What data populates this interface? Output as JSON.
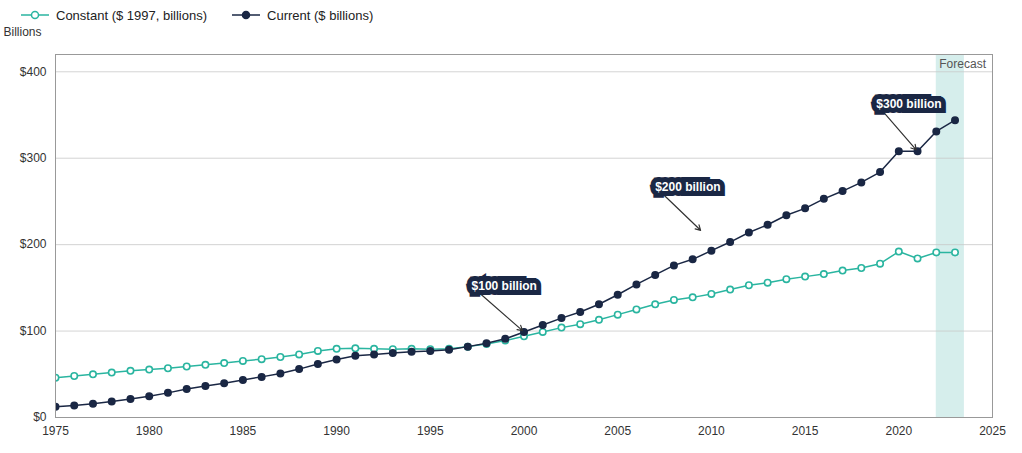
{
  "chart_data": {
    "type": "line",
    "x": [
      1975,
      1976,
      1977,
      1978,
      1979,
      1980,
      1981,
      1982,
      1983,
      1984,
      1985,
      1986,
      1987,
      1988,
      1989,
      1990,
      1991,
      1992,
      1993,
      1994,
      1995,
      1996,
      1997,
      1998,
      1999,
      2000,
      2001,
      2002,
      2003,
      2004,
      2005,
      2006,
      2007,
      2008,
      2009,
      2010,
      2011,
      2012,
      2013,
      2014,
      2015,
      2016,
      2017,
      2018,
      2019,
      2020,
      2021,
      2022,
      2023
    ],
    "series": [
      {
        "name": "Constant ($ 1997, billions)",
        "color": "#2ab5a0",
        "marker": "circle_open",
        "values": [
          46.0,
          48.0,
          50.0,
          52.0,
          54.0,
          55.5,
          57.0,
          59.0,
          61.0,
          63.0,
          65.5,
          67.5,
          70.0,
          73.0,
          77.0,
          79.5,
          80.0,
          79.5,
          79.0,
          79.5,
          79.0,
          79.5,
          82.0,
          85.0,
          89.0,
          94.0,
          99.0,
          104.0,
          108.0,
          113.0,
          119.0,
          125.0,
          131.0,
          136.0,
          139.0,
          143.0,
          148.0,
          153.0,
          156.0,
          160.0,
          163.0,
          166.0,
          170.0,
          173.0,
          178.0,
          192.0,
          184.0,
          191.0,
          191.0
        ]
      },
      {
        "name": "Current ($ billions)",
        "color": "#1a2744",
        "marker": "circle",
        "values": [
          12.5,
          14.0,
          16.0,
          18.5,
          21.5,
          24.5,
          28.5,
          33.0,
          36.5,
          39.5,
          43.5,
          47.0,
          51.0,
          56.0,
          62.0,
          67.0,
          71.5,
          73.0,
          74.5,
          76.0,
          77.0,
          78.5,
          82.0,
          86.0,
          91.0,
          99.0,
          107.0,
          115.0,
          122.0,
          131.0,
          142.0,
          154.0,
          165.0,
          176.0,
          183.0,
          193.0,
          203.0,
          214.0,
          223.0,
          234.0,
          242.0,
          253.0,
          262.0,
          272.0,
          284.0,
          308.0,
          308.0,
          331.0,
          344.0
        ]
      }
    ],
    "xlim": [
      1975,
      2025
    ],
    "xticks": [
      1975,
      1980,
      1985,
      1990,
      1995,
      2000,
      2005,
      2010,
      2015,
      2020,
      2025
    ],
    "ylim": [
      0,
      420
    ],
    "yticks": [
      {
        "value": 0,
        "label": "$0"
      },
      {
        "value": 100,
        "label": "$100"
      },
      {
        "value": 200,
        "label": "$200"
      },
      {
        "value": 300,
        "label": "$300"
      },
      {
        "value": 400,
        "label": "$400"
      }
    ],
    "ylabel": "Billions",
    "grid": true,
    "legend": "upper left",
    "forecast": {
      "label": "Forecast",
      "x1": 2022,
      "x2": 2023.5,
      "color": "#d6eeec"
    },
    "annotations": [
      {
        "text": "$100 billion",
        "x": 2000.0,
        "y": 99.0,
        "text_x": 1997.2,
        "text_y": 152,
        "color": "#1a2744",
        "text_color": "#ffffff"
      },
      {
        "text": "$200 billion",
        "x": 2009.5,
        "y": 215,
        "text_x": 2007.0,
        "text_y": 267,
        "color": "#1a2744",
        "text_color": "#ffffff"
      },
      {
        "text": "$300 billion",
        "x": 2021.0,
        "y": 308.0,
        "text_x": 2018.8,
        "text_y": 363,
        "color": "#1a2744",
        "text_color": "#ffffff"
      }
    ]
  }
}
